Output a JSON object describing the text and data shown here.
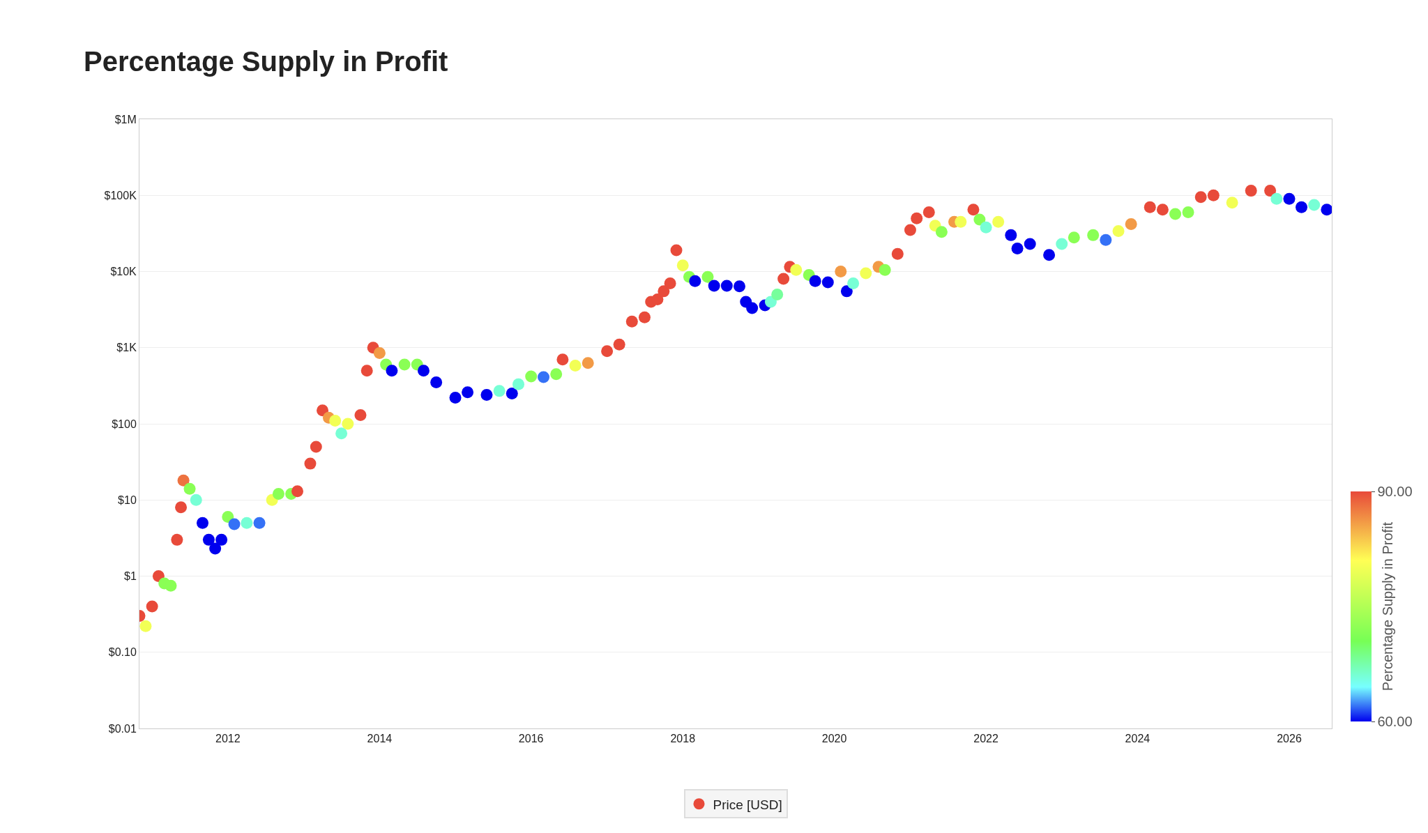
{
  "chart_data": {
    "type": "scatter",
    "title": "Percentage Supply in Profit",
    "clabel": "Percentage Supply in Profit",
    "clim": [
      60,
      90
    ],
    "cticks": [
      {
        "value": 60,
        "label": "60.00"
      },
      {
        "value": 90,
        "label": "90.00"
      }
    ],
    "log": "y",
    "ylim": [
      0.01,
      1000000
    ],
    "yticks": [
      {
        "value": 0.01,
        "label": "$0.01"
      },
      {
        "value": 0.1,
        "label": "$0.10"
      },
      {
        "value": 1,
        "label": "$1"
      },
      {
        "value": 10,
        "label": "$10"
      },
      {
        "value": 100,
        "label": "$100"
      },
      {
        "value": 1000,
        "label": "$1K"
      },
      {
        "value": 10000,
        "label": "$10K"
      },
      {
        "value": 100000,
        "label": "$100K"
      },
      {
        "value": 1000000,
        "label": "$1M"
      }
    ],
    "xlim": [
      "2010-11-01",
      "2026-07-25"
    ],
    "xticks": [
      "2012",
      "2014",
      "2016",
      "2018",
      "2020",
      "2022",
      "2024",
      "2026"
    ],
    "grid": "y",
    "legend": "bottom",
    "marker": "circle",
    "series": [
      {
        "name": "Price [USD]",
        "x": [
          "2010-11",
          "2010-12",
          "2011-01",
          "2011-02",
          "2011-03",
          "2011-04",
          "2011-05",
          "2011-05-20",
          "2011-06",
          "2011-07",
          "2011-08",
          "2011-09",
          "2011-10",
          "2011-11",
          "2011-12",
          "2012-01",
          "2012-02",
          "2012-04",
          "2012-06",
          "2012-08",
          "2012-09",
          "2012-11",
          "2012-12",
          "2013-02",
          "2013-03",
          "2013-04",
          "2013-05",
          "2013-06",
          "2013-07",
          "2013-08",
          "2013-10",
          "2013-11",
          "2013-12",
          "2014-01",
          "2014-02",
          "2014-03",
          "2014-05",
          "2014-07",
          "2014-08",
          "2014-10",
          "2015-01",
          "2015-03",
          "2015-06",
          "2015-08",
          "2015-10",
          "2015-11",
          "2016-01",
          "2016-03",
          "2016-05",
          "2016-06",
          "2016-08",
          "2016-10",
          "2017-01",
          "2017-03",
          "2017-05",
          "2017-07",
          "2017-08",
          "2017-09",
          "2017-10",
          "2017-11",
          "2017-12",
          "2018-01",
          "2018-02",
          "2018-03",
          "2018-05",
          "2018-06",
          "2018-08",
          "2018-10",
          "2018-11",
          "2018-12",
          "2019-02",
          "2019-03",
          "2019-04",
          "2019-05",
          "2019-06",
          "2019-07",
          "2019-09",
          "2019-10",
          "2019-12",
          "2020-02",
          "2020-03",
          "2020-04",
          "2020-06",
          "2020-08",
          "2020-09",
          "2020-11",
          "2021-01",
          "2021-02",
          "2021-04",
          "2021-05",
          "2021-06",
          "2021-08",
          "2021-09",
          "2021-11",
          "2021-12",
          "2022-01",
          "2022-03",
          "2022-05",
          "2022-06",
          "2022-08",
          "2022-11",
          "2023-01",
          "2023-03",
          "2023-06",
          "2023-08",
          "2023-10",
          "2023-12",
          "2024-03",
          "2024-05",
          "2024-07",
          "2024-09",
          "2024-11",
          "2025-01",
          "2025-04",
          "2025-07",
          "2025-10",
          "2025-11",
          "2026-01",
          "2026-03",
          "2026-05",
          "2026-07"
        ],
        "values": [
          0.3,
          0.22,
          0.4,
          1,
          0.8,
          0.75,
          3,
          8,
          18,
          14,
          10,
          5,
          3,
          2.3,
          3,
          6,
          4.8,
          5,
          5,
          10,
          12,
          12,
          13,
          30,
          50,
          150,
          120,
          110,
          75,
          100,
          130,
          500,
          1000,
          850,
          600,
          500,
          600,
          600,
          500,
          350,
          220,
          260,
          240,
          270,
          250,
          330,
          420,
          410,
          450,
          700,
          580,
          630,
          900,
          1100,
          2200,
          2500,
          4000,
          4300,
          5500,
          7000,
          19000,
          12000,
          8500,
          7500,
          8500,
          6500,
          6500,
          6400,
          4000,
          3300,
          3600,
          4000,
          5000,
          8000,
          11500,
          10500,
          9000,
          7500,
          7200,
          10000,
          5500,
          7000,
          9500,
          11500,
          10500,
          17000,
          35000,
          50000,
          60000,
          40000,
          33000,
          45000,
          45000,
          65000,
          48000,
          38000,
          45000,
          30000,
          20000,
          23000,
          16500,
          23000,
          28000,
          30000,
          26000,
          34000,
          42000,
          70000,
          65000,
          57000,
          60000,
          95000,
          100000,
          80000,
          115000,
          115000,
          90000,
          90000,
          70000,
          75000,
          65000
        ],
        "cvalues": [
          90,
          80,
          90,
          90,
          72,
          72,
          90,
          90,
          88,
          72,
          66,
          60,
          60,
          60,
          60,
          72,
          62,
          66,
          62,
          80,
          72,
          72,
          90,
          90,
          90,
          90,
          86,
          80,
          66,
          80,
          90,
          90,
          90,
          86,
          72,
          60,
          72,
          72,
          60,
          60,
          60,
          60,
          60,
          66,
          60,
          66,
          72,
          62,
          72,
          90,
          80,
          86,
          90,
          90,
          90,
          90,
          90,
          90,
          90,
          90,
          90,
          80,
          72,
          60,
          72,
          60,
          60,
          60,
          60,
          60,
          60,
          66,
          68,
          90,
          90,
          80,
          72,
          60,
          60,
          86,
          60,
          66,
          80,
          86,
          72,
          90,
          90,
          90,
          90,
          80,
          72,
          86,
          80,
          90,
          72,
          66,
          80,
          60,
          60,
          60,
          60,
          66,
          72,
          72,
          62,
          80,
          86,
          90,
          90,
          72,
          72,
          90,
          90,
          80,
          90,
          90,
          66,
          60,
          60,
          66,
          60
        ]
      }
    ]
  }
}
